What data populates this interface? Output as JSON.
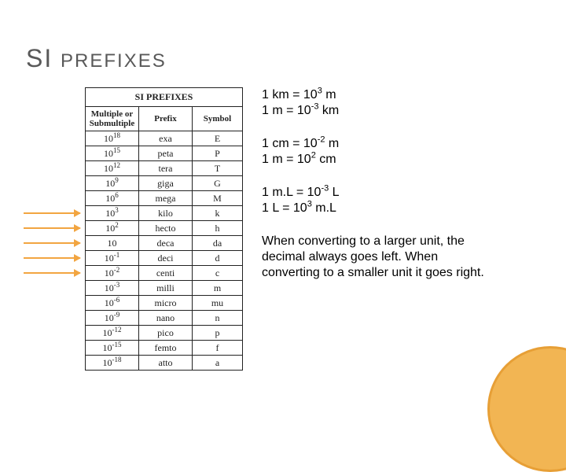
{
  "title": {
    "big": "SI",
    "small": "PREFIXES"
  },
  "accent_color": "#f2a541",
  "circle_fill": "#f2b24a",
  "circle_border": "#e69a2c",
  "table": {
    "caption": "SI PREFIXES",
    "headers": [
      "Multiple or Submultiple",
      "Prefix",
      "Symbol"
    ],
    "rows": [
      {
        "exp": "18",
        "prefix": "exa",
        "symbol": "E"
      },
      {
        "exp": "15",
        "prefix": "peta",
        "symbol": "P"
      },
      {
        "exp": "12",
        "prefix": "tera",
        "symbol": "T"
      },
      {
        "exp": "9",
        "prefix": "giga",
        "symbol": "G"
      },
      {
        "exp": "6",
        "prefix": "mega",
        "symbol": "M"
      },
      {
        "exp": "3",
        "prefix": "kilo",
        "symbol": "k"
      },
      {
        "exp": "2",
        "prefix": "hecto",
        "symbol": "h"
      },
      {
        "exp": "",
        "prefix": "deca",
        "symbol": "da",
        "base": "10"
      },
      {
        "exp": "-1",
        "prefix": "deci",
        "symbol": "d"
      },
      {
        "exp": "-2",
        "prefix": "centi",
        "symbol": "c"
      },
      {
        "exp": "-3",
        "prefix": "milli",
        "symbol": "m"
      },
      {
        "exp": "-6",
        "prefix": "micro",
        "symbol": "mu"
      },
      {
        "exp": "-9",
        "prefix": "nano",
        "symbol": "n"
      },
      {
        "exp": "-12",
        "prefix": "pico",
        "symbol": "p"
      },
      {
        "exp": "-15",
        "prefix": "femto",
        "symbol": "f"
      },
      {
        "exp": "-18",
        "prefix": "atto",
        "symbol": "a"
      }
    ],
    "arrow_row_indices": [
      5,
      6,
      7,
      8,
      9
    ]
  },
  "conversions": [
    [
      {
        "lhs": "1 km",
        "base": "10",
        "exp": "3",
        "rhs": "m"
      },
      {
        "lhs": "1 m",
        "base": "10",
        "exp": "-3",
        "rhs": "km"
      }
    ],
    [
      {
        "lhs": "1 cm",
        "base": "10",
        "exp": "-2",
        "rhs": "m"
      },
      {
        "lhs": "1 m",
        "base": "10",
        "exp": "2",
        "rhs": "cm"
      }
    ],
    [
      {
        "lhs": "1 m.L",
        "base": "10",
        "exp": "-3",
        "rhs": "L"
      },
      {
        "lhs": "1 L",
        "base": "10",
        "exp": "3",
        "rhs": "m.L"
      }
    ]
  ],
  "note": "When converting to a larger unit, the decimal always goes left. When converting to a smaller unit it goes right."
}
